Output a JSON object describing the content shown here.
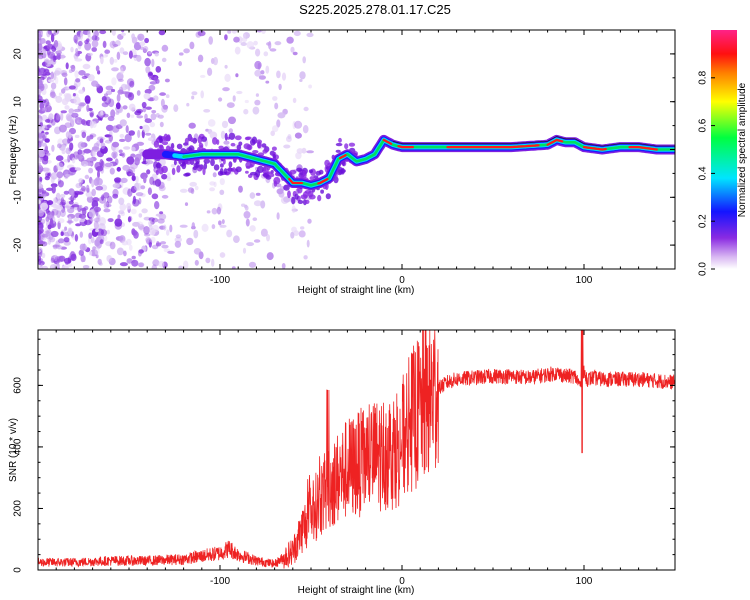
{
  "title": "S225.2025.278.01.17.C25",
  "chart_data": [
    {
      "type": "heatmap",
      "title": "S225.2025.278.01.17.C25",
      "xlabel": "Height of straight line (km)",
      "ylabel": "Frequency (Hz)",
      "xlim": [
        -200,
        150
      ],
      "ylim": [
        -25,
        25
      ],
      "xticks": [
        -100,
        0,
        100
      ],
      "yticks": [
        -20,
        -10,
        0,
        10,
        20
      ],
      "ridge": {
        "description": "Dominant frequency track vs. height",
        "x": [
          -130,
          -120,
          -110,
          -100,
          -90,
          -80,
          -70,
          -65,
          -60,
          -55,
          -50,
          -45,
          -40,
          -35,
          -30,
          -25,
          -20,
          -15,
          -10,
          -5,
          0,
          5,
          10,
          20,
          40,
          60,
          80,
          85,
          90,
          95,
          100,
          110,
          120,
          130,
          140,
          150
        ],
        "y": [
          -1,
          -1.5,
          -1,
          -1,
          -1,
          -2,
          -3,
          -5,
          -7,
          -7,
          -7.5,
          -7,
          -6,
          -2,
          -1,
          -2.5,
          -2,
          -1,
          2,
          1,
          0.5,
          0.5,
          0.5,
          0.5,
          0.5,
          0.5,
          1,
          2,
          1.5,
          1.5,
          0.5,
          0,
          0.5,
          0.5,
          0,
          0
        ]
      },
      "colorbar": {
        "label": "Normalized spectral amplitude",
        "range": [
          0,
          1
        ],
        "ticks": [
          0.0,
          0.2,
          0.4,
          0.6,
          0.8
        ]
      }
    },
    {
      "type": "line",
      "xlabel": "Height of straight line (km)",
      "ylabel": "SNR (10 * v/v)",
      "xlim": [
        -200,
        150
      ],
      "ylim": [
        0,
        780
      ],
      "xticks": [
        -100,
        0,
        100
      ],
      "yticks": [
        0,
        200,
        400,
        600
      ],
      "series": [
        {
          "name": "SNR",
          "color": "#ee2222",
          "x": [
            -200,
            -180,
            -160,
            -140,
            -120,
            -110,
            -100,
            -95,
            -90,
            -80,
            -70,
            -60,
            -55,
            -50,
            -45,
            -40,
            -35,
            -30,
            -25,
            -20,
            -15,
            -10,
            -5,
            0,
            5,
            10,
            15,
            20,
            25,
            30,
            40,
            50,
            60,
            70,
            80,
            85,
            90,
            95,
            98,
            100,
            102,
            105,
            110,
            120,
            130,
            140,
            150
          ],
          "y": [
            25,
            25,
            30,
            30,
            35,
            45,
            55,
            70,
            50,
            30,
            20,
            60,
            130,
            180,
            230,
            270,
            300,
            330,
            340,
            360,
            370,
            380,
            390,
            420,
            480,
            520,
            560,
            590,
            610,
            620,
            625,
            630,
            630,
            625,
            635,
            640,
            630,
            630,
            600,
            640,
            620,
            625,
            620,
            620,
            620,
            615,
            610
          ]
        }
      ]
    }
  ]
}
